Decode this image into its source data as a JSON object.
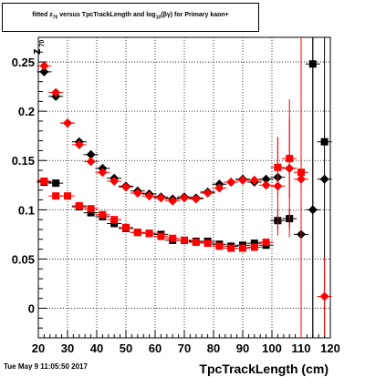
{
  "title": "fitted z70 versus TpcTrackLength and log10(βγ) for Primary kaon+",
  "title_parts": {
    "a": "fitted ",
    "z_sym": "z",
    "z_sub": "70",
    "b": " versus TpcTrackLength and log",
    "log_sub": "10",
    "c": "(βγ) for Primary kaon+"
  },
  "timestamp": "Tue May  9 11:05:50 2017",
  "chart_data": {
    "type": "scatter",
    "title": "fitted z70 versus TpcTrackLength and log10(βγ) for Primary kaon+",
    "xlabel": "TpcTrackLength (cm)",
    "ylabel": "z70",
    "ylabel_sym": "z",
    "ylabel_sub": "70",
    "xlim": [
      20,
      120
    ],
    "ylim": [
      -0.03,
      0.275
    ],
    "xticks": [
      20,
      30,
      40,
      50,
      60,
      70,
      80,
      90,
      100,
      110,
      120
    ],
    "yticks": [
      0,
      0.05,
      0.1,
      0.15,
      0.2,
      0.25
    ],
    "ytick_labels": [
      "0",
      "0.05",
      "0.1",
      "0.15",
      "0.2",
      "0.25"
    ],
    "grid": true,
    "colors": {
      "black": "#000000",
      "red": "#ff0000"
    },
    "series": [
      {
        "marker": "diamond",
        "color": "#000000",
        "points": [
          {
            "x": 22,
            "y": 0.24
          },
          {
            "x": 26,
            "y": 0.215
          },
          {
            "x": 30,
            "y": 0.188
          },
          {
            "x": 34,
            "y": 0.169
          },
          {
            "x": 38,
            "y": 0.156
          },
          {
            "x": 42,
            "y": 0.142
          },
          {
            "x": 46,
            "y": 0.132
          },
          {
            "x": 50,
            "y": 0.124
          },
          {
            "x": 54,
            "y": 0.119
          },
          {
            "x": 58,
            "y": 0.116
          },
          {
            "x": 62,
            "y": 0.113
          },
          {
            "x": 66,
            "y": 0.111
          },
          {
            "x": 70,
            "y": 0.113
          },
          {
            "x": 74,
            "y": 0.112
          },
          {
            "x": 78,
            "y": 0.118
          },
          {
            "x": 82,
            "y": 0.126
          },
          {
            "x": 86,
            "y": 0.128
          },
          {
            "x": 90,
            "y": 0.131
          },
          {
            "x": 94,
            "y": 0.128
          },
          {
            "x": 98,
            "y": 0.131
          },
          {
            "x": 102,
            "y": 0.133
          },
          {
            "x": 106,
            "y": 0.142
          },
          {
            "x": 110,
            "y": 0.075,
            "err": 0.08
          },
          {
            "x": 114,
            "y": 0.1,
            "err": 0.25
          },
          {
            "x": 118,
            "y": 0.131,
            "err": 0.17
          }
        ]
      },
      {
        "marker": "square",
        "color": "#000000",
        "points": [
          {
            "x": 22,
            "y": 0.128
          },
          {
            "x": 26,
            "y": 0.127
          },
          {
            "x": 34,
            "y": 0.103
          },
          {
            "x": 38,
            "y": 0.097
          },
          {
            "x": 42,
            "y": 0.093
          },
          {
            "x": 46,
            "y": 0.086
          },
          {
            "x": 50,
            "y": 0.081
          },
          {
            "x": 54,
            "y": 0.077
          },
          {
            "x": 58,
            "y": 0.076
          },
          {
            "x": 62,
            "y": 0.075
          },
          {
            "x": 66,
            "y": 0.069
          },
          {
            "x": 70,
            "y": 0.069
          },
          {
            "x": 74,
            "y": 0.068
          },
          {
            "x": 78,
            "y": 0.068
          },
          {
            "x": 82,
            "y": 0.065
          },
          {
            "x": 86,
            "y": 0.063
          },
          {
            "x": 90,
            "y": 0.064
          },
          {
            "x": 94,
            "y": 0.066
          },
          {
            "x": 98,
            "y": 0.064
          },
          {
            "x": 102,
            "y": 0.089,
            "err": 0.01
          },
          {
            "x": 106,
            "y": 0.091,
            "err": 0.01
          },
          {
            "x": 114,
            "y": 0.248,
            "err": 0.3
          },
          {
            "x": 118,
            "y": 0.169
          }
        ]
      },
      {
        "marker": "diamond",
        "color": "#ff0000",
        "points": [
          {
            "x": 22,
            "y": 0.246
          },
          {
            "x": 26,
            "y": 0.219
          },
          {
            "x": 30,
            "y": 0.188
          },
          {
            "x": 34,
            "y": 0.166
          },
          {
            "x": 38,
            "y": 0.149
          },
          {
            "x": 42,
            "y": 0.138
          },
          {
            "x": 46,
            "y": 0.129
          },
          {
            "x": 50,
            "y": 0.123
          },
          {
            "x": 54,
            "y": 0.117
          },
          {
            "x": 58,
            "y": 0.114
          },
          {
            "x": 62,
            "y": 0.112
          },
          {
            "x": 66,
            "y": 0.109
          },
          {
            "x": 70,
            "y": 0.112
          },
          {
            "x": 74,
            "y": 0.111
          },
          {
            "x": 78,
            "y": 0.117
          },
          {
            "x": 82,
            "y": 0.122
          },
          {
            "x": 86,
            "y": 0.128
          },
          {
            "x": 90,
            "y": 0.13
          },
          {
            "x": 94,
            "y": 0.13
          },
          {
            "x": 98,
            "y": 0.125
          },
          {
            "x": 102,
            "y": 0.124,
            "err": 0.05
          },
          {
            "x": 106,
            "y": 0.142,
            "err": 0.07
          },
          {
            "x": 110,
            "y": 0.131,
            "err": 0.12
          },
          {
            "x": 118,
            "y": 0.012,
            "err": 0.04
          }
        ]
      },
      {
        "marker": "square",
        "color": "#ff0000",
        "points": [
          {
            "x": 22,
            "y": 0.129
          },
          {
            "x": 26,
            "y": 0.114
          },
          {
            "x": 30,
            "y": 0.114
          },
          {
            "x": 34,
            "y": 0.104
          },
          {
            "x": 38,
            "y": 0.101
          },
          {
            "x": 42,
            "y": 0.095
          },
          {
            "x": 46,
            "y": 0.09
          },
          {
            "x": 50,
            "y": 0.082
          },
          {
            "x": 54,
            "y": 0.077
          },
          {
            "x": 58,
            "y": 0.076
          },
          {
            "x": 62,
            "y": 0.073
          },
          {
            "x": 66,
            "y": 0.071
          },
          {
            "x": 70,
            "y": 0.069
          },
          {
            "x": 74,
            "y": 0.067
          },
          {
            "x": 78,
            "y": 0.066
          },
          {
            "x": 82,
            "y": 0.063
          },
          {
            "x": 86,
            "y": 0.061
          },
          {
            "x": 90,
            "y": 0.061
          },
          {
            "x": 94,
            "y": 0.062
          },
          {
            "x": 98,
            "y": 0.067
          },
          {
            "x": 102,
            "y": 0.143,
            "err": 0.03
          },
          {
            "x": 106,
            "y": 0.152,
            "err": 0.04
          },
          {
            "x": 110,
            "y": 0.138,
            "err": 0.2
          }
        ]
      }
    ]
  }
}
